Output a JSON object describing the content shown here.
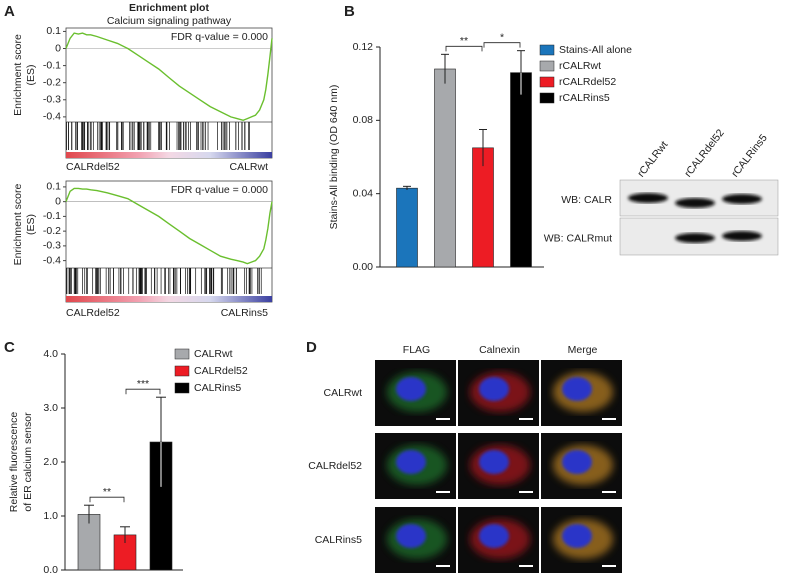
{
  "panel_labels": [
    "A",
    "B",
    "C",
    "D"
  ],
  "chart_data": [
    {
      "type": "line",
      "title": "Enrichment plot",
      "subtitle": "Calcium signaling pathway",
      "ylabel": [
        "Enrichment score",
        "(ES)"
      ],
      "annotation": "FDR q-value = 0.000",
      "x_end_labels": [
        "CALRdel52",
        "CALRwt"
      ],
      "x": [
        0,
        2,
        4,
        6,
        8,
        10,
        12,
        15,
        20,
        25,
        30,
        35,
        40,
        45,
        50,
        55,
        60,
        65,
        70,
        75,
        80,
        83,
        86,
        88,
        90,
        92,
        94,
        96,
        97,
        98,
        99,
        100
      ],
      "values": [
        0,
        0.06,
        0.09,
        0.085,
        0.09,
        0.08,
        0.08,
        0.07,
        0.05,
        0.03,
        0.0,
        -0.04,
        -0.08,
        -0.12,
        -0.17,
        -0.22,
        -0.26,
        -0.3,
        -0.34,
        -0.37,
        -0.4,
        -0.41,
        -0.42,
        -0.41,
        -0.4,
        -0.39,
        -0.36,
        -0.3,
        -0.24,
        -0.15,
        -0.05,
        0.06
      ],
      "color": "#6abf2e",
      "xlim": [
        0,
        100
      ],
      "ylim": [
        -0.43,
        0.12
      ],
      "yticks": [
        0.1,
        0,
        -0.1,
        -0.2,
        -0.3,
        -0.4
      ]
    },
    {
      "type": "line",
      "ylabel": [
        "Enrichment score",
        "(ES)"
      ],
      "annotation": "FDR q-value = 0.000",
      "x_end_labels": [
        "CALRdel52",
        "CALRins5"
      ],
      "x": [
        0,
        2,
        4,
        6,
        8,
        10,
        12,
        15,
        20,
        25,
        30,
        35,
        40,
        45,
        50,
        55,
        60,
        65,
        70,
        75,
        80,
        83,
        86,
        88,
        90,
        92,
        94,
        96,
        97,
        98,
        99,
        100
      ],
      "values": [
        0,
        0.07,
        0.09,
        0.09,
        0.085,
        0.085,
        0.08,
        0.075,
        0.06,
        0.04,
        0.02,
        -0.02,
        -0.06,
        -0.1,
        -0.15,
        -0.2,
        -0.25,
        -0.29,
        -0.33,
        -0.37,
        -0.39,
        -0.4,
        -0.41,
        -0.42,
        -0.41,
        -0.4,
        -0.37,
        -0.32,
        -0.26,
        -0.18,
        -0.08,
        0.0
      ],
      "color": "#6abf2e",
      "xlim": [
        0,
        100
      ],
      "ylim": [
        -0.45,
        0.14
      ],
      "yticks": [
        0.1,
        0,
        -0.1,
        -0.2,
        -0.3,
        -0.4
      ]
    },
    {
      "type": "bar",
      "ylabel": [
        "Stains-All binding (OD 640 nm)"
      ],
      "categories": [
        "Stains-All alone",
        "rCALRwt",
        "rCALRdel52",
        "rCALRins5"
      ],
      "values": [
        0.043,
        0.108,
        0.065,
        0.106
      ],
      "errors": [
        0.001,
        0.008,
        0.01,
        0.012
      ],
      "colors": [
        "#1b75bb",
        "#a7a9ac",
        "#ed1c24",
        "#000000"
      ],
      "ylim": [
        0,
        0.12
      ],
      "yticks": [
        {
          "value": 0,
          "label": "0.00"
        },
        0.04,
        0.08,
        0.12
      ],
      "legend": "right",
      "brackets": [
        {
          "label": "**",
          "between": [
            "rCALRwt",
            "rCALRdel52"
          ]
        },
        {
          "label": "*",
          "between": [
            "rCALRdel52",
            "rCALRins5"
          ]
        }
      ]
    },
    {
      "type": "bar",
      "ylabel": [
        "Relative fluorescence",
        "of ER calcium sensor"
      ],
      "categories": [
        "CALRwt",
        "CALRdel52",
        "CALRins5"
      ],
      "values": [
        1.03,
        0.65,
        2.37
      ],
      "errors": [
        0.17,
        0.15,
        0.83
      ],
      "colors": [
        "#a7a9ac",
        "#ed1c24",
        "#000000"
      ],
      "ylim": [
        0,
        4
      ],
      "yticks": [
        {
          "value": 0,
          "label": "0.0"
        },
        {
          "value": 1,
          "label": "1.0"
        },
        {
          "value": 2,
          "label": "2.0"
        },
        {
          "value": 3,
          "label": "3.0"
        },
        {
          "value": 4,
          "label": "4.0"
        }
      ],
      "legend": "right",
      "brackets": [
        {
          "label": "**",
          "between": [
            "CALRwt",
            "CALRdel52"
          ]
        },
        {
          "label": "***",
          "between": [
            "CALRdel52",
            "CALRins5"
          ]
        }
      ]
    }
  ],
  "western_blot": {
    "lanes": [
      "rCALRwt",
      "rCALRdel52",
      "rCALRins5"
    ],
    "blots": [
      "WB: CALR",
      "WB: CALRmut"
    ]
  },
  "micrographs": {
    "columns": [
      "FLAG",
      "Calnexin",
      "Merge"
    ],
    "rows": [
      "CALRwt",
      "CALRdel52",
      "CALRins5"
    ]
  }
}
